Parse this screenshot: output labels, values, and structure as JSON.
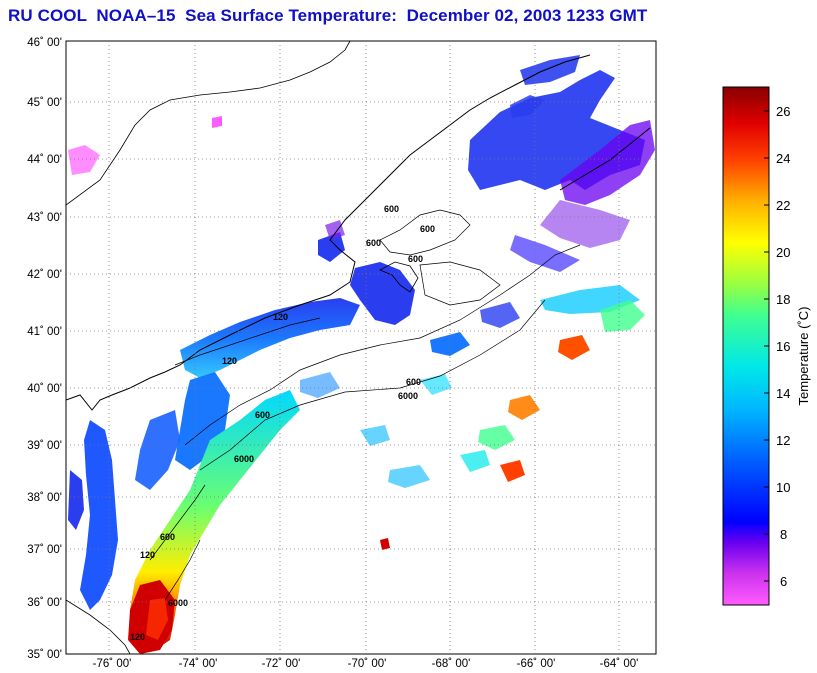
{
  "title": "RU COOL  NOAA–15  Sea Surface Temperature:  December 02, 2003 1233 GMT",
  "map": {
    "lon_ticks": [
      "-76˚ 00'",
      "-74˚ 00'",
      "-72˚ 00'",
      "-70˚ 00'",
      "-68˚ 00'",
      "-66˚ 00'",
      "-64˚ 00'"
    ],
    "lat_ticks": [
      "46˚ 00'",
      "45˚ 00'",
      "44˚ 00'",
      "43˚ 00'",
      "42˚ 00'",
      "41˚ 00'",
      "40˚ 00'",
      "39˚ 00'",
      "38˚ 00'",
      "37˚ 00'",
      "36˚ 00'",
      "35˚ 00'"
    ],
    "contour_labels": [
      "600",
      "600",
      "600",
      "600",
      "120",
      "120",
      "600",
      "6000",
      "600",
      "6000",
      "120",
      "600",
      "6000",
      "120"
    ],
    "grid": true
  },
  "colorbar": {
    "title": "Temperature (˚C)",
    "ticks": [
      "26",
      "24",
      "22",
      "20",
      "18",
      "16",
      "14",
      "12",
      "10",
      "8",
      "6"
    ],
    "range": [
      5,
      27
    ]
  },
  "colors": {
    "title": "#1010c8",
    "land": "#ffffff",
    "coast": "#000000"
  }
}
